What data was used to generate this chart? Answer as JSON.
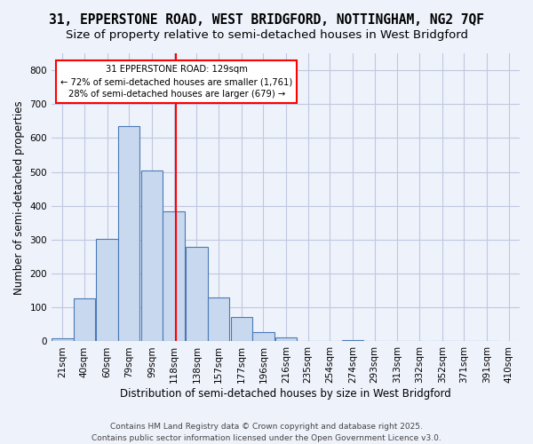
{
  "title1": "31, EPPERSTONE ROAD, WEST BRIDGFORD, NOTTINGHAM, NG2 7QF",
  "title2": "Size of property relative to semi-detached houses in West Bridgford",
  "xlabel": "Distribution of semi-detached houses by size in West Bridgford",
  "ylabel": "Number of semi-detached properties",
  "bins": [
    "21sqm",
    "40sqm",
    "60sqm",
    "79sqm",
    "99sqm",
    "118sqm",
    "138sqm",
    "157sqm",
    "177sqm",
    "196sqm",
    "216sqm",
    "235sqm",
    "254sqm",
    "274sqm",
    "293sqm",
    "313sqm",
    "332sqm",
    "352sqm",
    "371sqm",
    "391sqm",
    "410sqm"
  ],
  "bar_heights": [
    8,
    127,
    302,
    634,
    503,
    383,
    280,
    130,
    72,
    27,
    12,
    0,
    0,
    5,
    0,
    0,
    0,
    0,
    0,
    0
  ],
  "bar_left_edges": [
    21,
    40,
    60,
    79,
    99,
    118,
    138,
    157,
    177,
    196,
    216,
    235,
    254,
    274,
    293,
    313,
    332,
    352,
    371,
    391
  ],
  "bin_width": 19,
  "vline_color": "red",
  "vline_x": 129,
  "annotation_text": "31 EPPERSTONE ROAD: 129sqm\n← 72% of semi-detached houses are smaller (1,761)\n28% of semi-detached houses are larger (679) →",
  "annotation_box_color": "white",
  "annotation_box_edge": "red",
  "ylim": [
    0,
    850
  ],
  "yticks": [
    0,
    100,
    200,
    300,
    400,
    500,
    600,
    700,
    800
  ],
  "footer": "Contains HM Land Registry data © Crown copyright and database right 2025.\nContains public sector information licensed under the Open Government Licence v3.0.",
  "bg_color": "#eef2fb",
  "grid_color": "#c0c8e0",
  "bar_color": "#c8d8ee",
  "bar_edge_color": "#4a7ab5",
  "title_fontsize": 10.5,
  "subtitle_fontsize": 9.5,
  "axis_label_fontsize": 8.5,
  "tick_fontsize": 7.5,
  "footer_fontsize": 6.5
}
